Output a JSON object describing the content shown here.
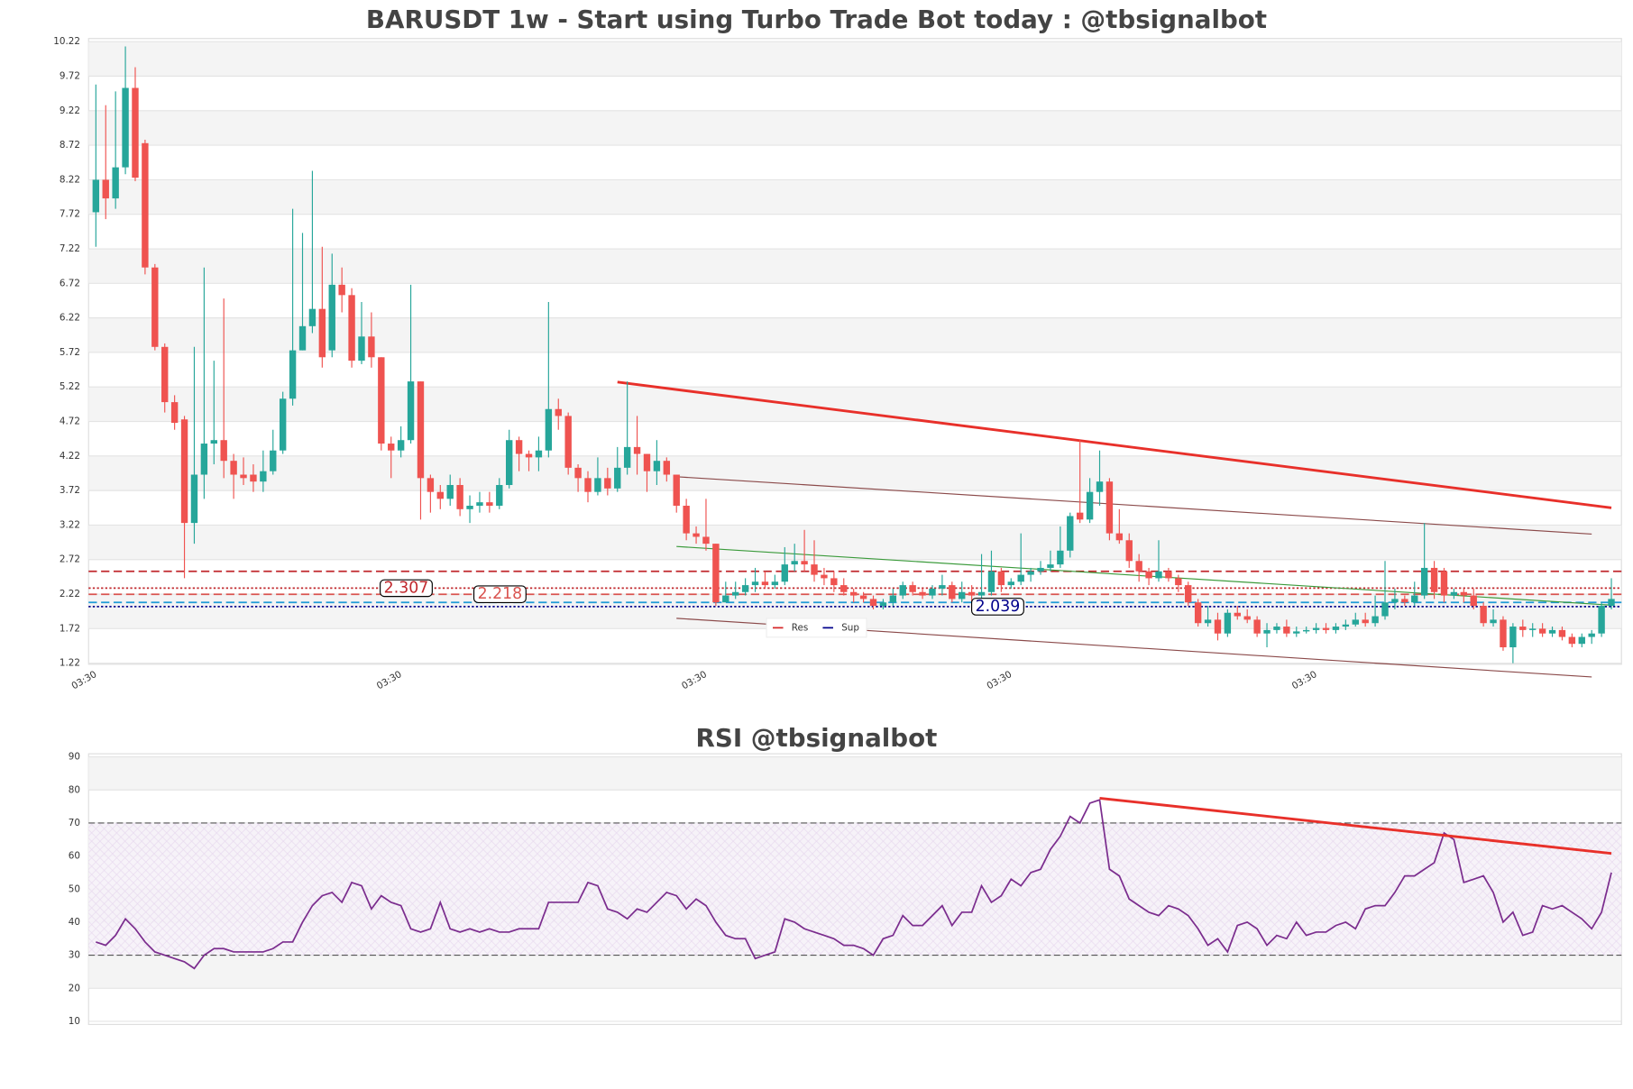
{
  "chart_data": [
    {
      "type": "candlestick",
      "title": "BARUSDT 1w - Start using Turbo Trade Bot today : @tbsignalbot",
      "categories": [
        "03:30",
        null,
        null,
        null,
        null,
        null,
        null,
        null,
        null,
        null,
        null,
        null,
        null,
        null,
        null,
        null,
        null,
        null,
        null,
        null,
        null,
        null,
        null,
        null,
        null,
        null,
        null,
        null,
        null,
        null,
        null,
        "03:30",
        null,
        null,
        null,
        null,
        null,
        null,
        null,
        null,
        null,
        null,
        null,
        null,
        null,
        null,
        null,
        null,
        null,
        null,
        null,
        null,
        null,
        null,
        null,
        null,
        null,
        null,
        null,
        null,
        null,
        null,
        "03:30",
        null,
        null,
        null,
        null,
        null,
        null,
        null,
        null,
        null,
        null,
        null,
        null,
        null,
        null,
        null,
        null,
        null,
        null,
        null,
        null,
        null,
        null,
        null,
        null,
        null,
        null,
        null,
        null,
        null,
        null,
        "03:30",
        null,
        null,
        null,
        null,
        null,
        null,
        null,
        null,
        null,
        null,
        null,
        null,
        null,
        null,
        null,
        null,
        null,
        null,
        null,
        null,
        null,
        null,
        null,
        null,
        null,
        null,
        null,
        null,
        null,
        null,
        "03:30",
        null,
        null,
        null,
        null,
        null,
        null,
        null,
        null,
        null,
        null,
        null,
        null,
        null,
        null,
        null,
        null,
        null,
        null,
        null,
        null,
        null,
        null,
        null,
        null,
        null,
        null,
        null,
        null,
        null,
        null
      ],
      "ohlc": [
        [
          7.75,
          9.6,
          7.25,
          8.22
        ],
        [
          8.22,
          9.3,
          7.65,
          7.95
        ],
        [
          7.95,
          9.5,
          7.8,
          8.4
        ],
        [
          8.4,
          10.15,
          8.3,
          9.55
        ],
        [
          9.55,
          9.85,
          8.2,
          8.25
        ],
        [
          8.75,
          8.8,
          6.85,
          6.95
        ],
        [
          6.95,
          7.0,
          5.75,
          5.8
        ],
        [
          5.8,
          5.85,
          4.85,
          5.0
        ],
        [
          5.0,
          5.1,
          4.6,
          4.7
        ],
        [
          4.75,
          4.8,
          2.45,
          3.25
        ],
        [
          3.25,
          5.8,
          2.95,
          3.95
        ],
        [
          3.95,
          6.95,
          3.6,
          4.4
        ],
        [
          4.4,
          5.6,
          4.1,
          4.45
        ],
        [
          4.45,
          6.5,
          3.9,
          4.15
        ],
        [
          4.15,
          4.25,
          3.6,
          3.95
        ],
        [
          3.95,
          4.2,
          3.8,
          3.9
        ],
        [
          3.95,
          4.1,
          3.7,
          3.85
        ],
        [
          3.85,
          4.3,
          3.7,
          4.0
        ],
        [
          4.0,
          4.6,
          3.95,
          4.3
        ],
        [
          4.3,
          5.15,
          4.25,
          5.05
        ],
        [
          5.05,
          7.8,
          4.95,
          5.75
        ],
        [
          5.75,
          7.45,
          5.75,
          6.1
        ],
        [
          6.1,
          8.35,
          6.0,
          6.35
        ],
        [
          6.35,
          7.25,
          5.5,
          5.65
        ],
        [
          5.75,
          7.15,
          5.65,
          6.7
        ],
        [
          6.7,
          6.95,
          6.3,
          6.55
        ],
        [
          6.55,
          6.65,
          5.5,
          5.6
        ],
        [
          5.6,
          6.45,
          5.55,
          5.95
        ],
        [
          5.95,
          6.3,
          5.5,
          5.65
        ],
        [
          5.65,
          5.65,
          4.3,
          4.4
        ],
        [
          4.4,
          4.5,
          3.9,
          4.3
        ],
        [
          4.3,
          4.65,
          4.2,
          4.45
        ],
        [
          4.45,
          6.7,
          4.4,
          5.3
        ],
        [
          5.3,
          5.3,
          3.3,
          3.9
        ],
        [
          3.9,
          3.95,
          3.4,
          3.7
        ],
        [
          3.7,
          3.8,
          3.45,
          3.6
        ],
        [
          3.6,
          3.95,
          3.5,
          3.8
        ],
        [
          3.8,
          3.9,
          3.35,
          3.45
        ],
        [
          3.45,
          3.65,
          3.25,
          3.5
        ],
        [
          3.5,
          3.7,
          3.4,
          3.55
        ],
        [
          3.55,
          3.7,
          3.4,
          3.5
        ],
        [
          3.5,
          3.9,
          3.45,
          3.8
        ],
        [
          3.8,
          4.6,
          3.75,
          4.45
        ],
        [
          4.45,
          4.5,
          4.0,
          4.25
        ],
        [
          4.25,
          4.3,
          4.0,
          4.2
        ],
        [
          4.2,
          4.5,
          4.0,
          4.3
        ],
        [
          4.3,
          6.45,
          4.2,
          4.9
        ],
        [
          4.9,
          5.05,
          4.6,
          4.8
        ],
        [
          4.8,
          4.85,
          3.95,
          4.05
        ],
        [
          4.05,
          4.1,
          3.7,
          3.9
        ],
        [
          3.9,
          4.0,
          3.55,
          3.7
        ],
        [
          3.7,
          4.2,
          3.65,
          3.9
        ],
        [
          3.9,
          4.05,
          3.65,
          3.75
        ],
        [
          3.75,
          4.35,
          3.7,
          4.05
        ],
        [
          4.05,
          5.3,
          3.95,
          4.35
        ],
        [
          4.35,
          4.8,
          3.95,
          4.25
        ],
        [
          4.25,
          4.25,
          3.7,
          4.0
        ],
        [
          4.0,
          4.45,
          3.8,
          4.15
        ],
        [
          4.15,
          4.2,
          3.85,
          3.95
        ],
        [
          3.95,
          3.95,
          3.4,
          3.5
        ],
        [
          3.5,
          3.6,
          3.0,
          3.1
        ],
        [
          3.1,
          3.2,
          2.95,
          3.05
        ],
        [
          3.05,
          3.6,
          2.85,
          2.95
        ],
        [
          2.95,
          2.95,
          2.05,
          2.1
        ],
        [
          2.1,
          2.4,
          2.1,
          2.2
        ],
        [
          2.2,
          2.4,
          2.15,
          2.25
        ],
        [
          2.25,
          2.45,
          2.2,
          2.35
        ],
        [
          2.35,
          2.6,
          2.25,
          2.4
        ],
        [
          2.4,
          2.55,
          2.3,
          2.35
        ],
        [
          2.35,
          2.5,
          2.3,
          2.4
        ],
        [
          2.4,
          2.9,
          2.35,
          2.65
        ],
        [
          2.65,
          2.95,
          2.55,
          2.7
        ],
        [
          2.7,
          3.15,
          2.55,
          2.65
        ],
        [
          2.65,
          3.0,
          2.4,
          2.5
        ],
        [
          2.5,
          2.6,
          2.35,
          2.45
        ],
        [
          2.45,
          2.55,
          2.25,
          2.35
        ],
        [
          2.35,
          2.45,
          2.2,
          2.25
        ],
        [
          2.25,
          2.3,
          2.1,
          2.2
        ],
        [
          2.2,
          2.25,
          2.1,
          2.15
        ],
        [
          2.15,
          2.2,
          2.0,
          2.05
        ],
        [
          2.05,
          2.15,
          2.0,
          2.1
        ],
        [
          2.1,
          2.3,
          2.05,
          2.2
        ],
        [
          2.2,
          2.4,
          2.15,
          2.35
        ],
        [
          2.35,
          2.4,
          2.2,
          2.25
        ],
        [
          2.25,
          2.3,
          2.15,
          2.2
        ],
        [
          2.2,
          2.35,
          2.15,
          2.3
        ],
        [
          2.3,
          2.5,
          2.2,
          2.35
        ],
        [
          2.35,
          2.4,
          2.1,
          2.15
        ],
        [
          2.15,
          2.4,
          2.1,
          2.25
        ],
        [
          2.25,
          2.35,
          2.1,
          2.2
        ],
        [
          2.2,
          2.8,
          2.1,
          2.25
        ],
        [
          2.25,
          2.85,
          2.2,
          2.55
        ],
        [
          2.55,
          2.6,
          2.25,
          2.35
        ],
        [
          2.35,
          2.45,
          2.3,
          2.4
        ],
        [
          2.4,
          3.1,
          2.35,
          2.5
        ],
        [
          2.5,
          2.6,
          2.4,
          2.55
        ],
        [
          2.55,
          2.7,
          2.5,
          2.6
        ],
        [
          2.6,
          2.85,
          2.55,
          2.65
        ],
        [
          2.65,
          3.2,
          2.6,
          2.85
        ],
        [
          2.85,
          3.4,
          2.75,
          3.35
        ],
        [
          3.4,
          4.45,
          3.25,
          3.3
        ],
        [
          3.3,
          3.9,
          3.25,
          3.7
        ],
        [
          3.7,
          4.3,
          3.5,
          3.85
        ],
        [
          3.85,
          3.9,
          3.0,
          3.1
        ],
        [
          3.1,
          3.45,
          2.95,
          3.0
        ],
        [
          3.0,
          3.1,
          2.6,
          2.7
        ],
        [
          2.7,
          2.8,
          2.4,
          2.55
        ],
        [
          2.55,
          2.6,
          2.35,
          2.45
        ],
        [
          2.45,
          3.0,
          2.4,
          2.55
        ],
        [
          2.55,
          2.6,
          2.4,
          2.45
        ],
        [
          2.45,
          2.5,
          2.25,
          2.35
        ],
        [
          2.35,
          2.4,
          2.05,
          2.1
        ],
        [
          2.1,
          2.15,
          1.75,
          1.8
        ],
        [
          1.8,
          2.05,
          1.75,
          1.85
        ],
        [
          1.85,
          1.95,
          1.55,
          1.65
        ],
        [
          1.65,
          2.0,
          1.6,
          1.95
        ],
        [
          1.95,
          2.05,
          1.85,
          1.9
        ],
        [
          1.9,
          2.0,
          1.8,
          1.85
        ],
        [
          1.85,
          1.9,
          1.6,
          1.65
        ],
        [
          1.65,
          1.8,
          1.45,
          1.7
        ],
        [
          1.7,
          1.8,
          1.65,
          1.75
        ],
        [
          1.75,
          1.85,
          1.6,
          1.65
        ],
        [
          1.65,
          1.75,
          1.6,
          1.68
        ],
        [
          1.68,
          1.75,
          1.65,
          1.7
        ],
        [
          1.7,
          1.8,
          1.65,
          1.73
        ],
        [
          1.73,
          1.8,
          1.65,
          1.7
        ],
        [
          1.7,
          1.8,
          1.65,
          1.75
        ],
        [
          1.75,
          1.85,
          1.7,
          1.78
        ],
        [
          1.78,
          1.95,
          1.75,
          1.85
        ],
        [
          1.85,
          1.95,
          1.75,
          1.8
        ],
        [
          1.8,
          2.2,
          1.75,
          1.9
        ],
        [
          1.9,
          2.7,
          1.85,
          2.1
        ],
        [
          2.1,
          2.3,
          2.0,
          2.15
        ],
        [
          2.15,
          2.2,
          2.05,
          2.1
        ],
        [
          2.1,
          2.4,
          2.05,
          2.2
        ],
        [
          2.2,
          3.25,
          2.15,
          2.6
        ],
        [
          2.6,
          2.7,
          2.15,
          2.25
        ],
        [
          2.55,
          2.6,
          2.1,
          2.2
        ],
        [
          2.2,
          2.3,
          2.15,
          2.25
        ],
        [
          2.25,
          2.3,
          2.1,
          2.2
        ],
        [
          2.2,
          2.3,
          2.0,
          2.05
        ],
        [
          2.05,
          2.1,
          1.75,
          1.8
        ],
        [
          1.8,
          2.0,
          1.75,
          1.85
        ],
        [
          1.85,
          1.9,
          1.4,
          1.45
        ],
        [
          1.45,
          1.8,
          1.22,
          1.75
        ],
        [
          1.75,
          1.85,
          1.6,
          1.7
        ],
        [
          1.7,
          1.8,
          1.6,
          1.72
        ],
        [
          1.72,
          1.8,
          1.6,
          1.65
        ],
        [
          1.65,
          1.75,
          1.6,
          1.7
        ],
        [
          1.7,
          1.75,
          1.55,
          1.6
        ],
        [
          1.6,
          1.65,
          1.45,
          1.5
        ],
        [
          1.5,
          1.65,
          1.45,
          1.6
        ],
        [
          1.6,
          1.7,
          1.5,
          1.65
        ],
        [
          1.65,
          2.1,
          1.6,
          2.05
        ],
        [
          2.05,
          2.45,
          2.0,
          2.15
        ]
      ],
      "up_color": "#26a69a",
      "down_color": "#ef5350",
      "ylim": [
        1.22,
        10.22
      ],
      "yticks": [
        1.22,
        1.72,
        2.22,
        2.72,
        3.22,
        3.72,
        4.22,
        4.72,
        5.22,
        5.72,
        6.22,
        6.72,
        7.22,
        7.72,
        8.22,
        8.72,
        9.22,
        9.72,
        10.22
      ],
      "trendlines": [
        {
          "color": "#e8302a",
          "width": 2.5,
          "x": [
            53,
            154
          ],
          "y": [
            5.29,
            3.47
          ]
        },
        {
          "color": "#8b4a4a",
          "width": 1,
          "x": [
            59,
            152
          ],
          "y": [
            3.92,
            3.09
          ]
        },
        {
          "color": "#8b4a4a",
          "width": 1,
          "x": [
            59,
            152
          ],
          "y": [
            1.87,
            1.02
          ]
        },
        {
          "color": "#3a9a3a",
          "width": 1,
          "x": [
            59,
            154
          ],
          "y": [
            2.91,
            2.06
          ]
        }
      ],
      "levels": [
        {
          "value": 2.55,
          "color": "#c0282d",
          "dash": "dashed"
        },
        {
          "value": 2.307,
          "color": "#c0282d",
          "dash": "dotted",
          "tag": true
        },
        {
          "value": 2.218,
          "color": "#d9534f",
          "dash": "dashed",
          "tag": true
        },
        {
          "value": 2.1,
          "color": "#1f9bd6",
          "dash": "dashed"
        },
        {
          "value": 2.039,
          "color": "#00008b",
          "dash": "dotted",
          "tag": true
        }
      ],
      "legend": [
        {
          "name": "Res",
          "color": "#d62728"
        },
        {
          "name": "Sup",
          "color": "#00008b"
        }
      ]
    },
    {
      "type": "line",
      "title": "RSI @tbsignalbot",
      "color": "#7b2d8e",
      "values": [
        34,
        33,
        36,
        41,
        38,
        34,
        31,
        30,
        29,
        28,
        26,
        30,
        32,
        32,
        31,
        31,
        31,
        31,
        32,
        34,
        34,
        40,
        45,
        48,
        49,
        46,
        52,
        51,
        44,
        48,
        46,
        45,
        38,
        37,
        38,
        46,
        38,
        37,
        38,
        37,
        38,
        37,
        37,
        38,
        38,
        38,
        46,
        46,
        46,
        46,
        52,
        51,
        44,
        43,
        41,
        44,
        43,
        46,
        49,
        48,
        44,
        47,
        45,
        40,
        36,
        35,
        35,
        29,
        30,
        31,
        41,
        40,
        38,
        37,
        36,
        35,
        33,
        33,
        32,
        30,
        35,
        36,
        42,
        39,
        39,
        42,
        45,
        39,
        43,
        43,
        51,
        46,
        48,
        53,
        51,
        55,
        56,
        62,
        66,
        72,
        70,
        76,
        77,
        56,
        54,
        47,
        45,
        43,
        42,
        45,
        44,
        42,
        38,
        33,
        35,
        31,
        39,
        40,
        38,
        33,
        36,
        35,
        40,
        36,
        37,
        37,
        39,
        40,
        38,
        44,
        45,
        45,
        49,
        54,
        54,
        56,
        58,
        67,
        65,
        52,
        53,
        54,
        49,
        40,
        43,
        36,
        37,
        45,
        44,
        45,
        43,
        41,
        38,
        43,
        55
      ],
      "ylim": [
        10,
        90
      ],
      "yticks": [
        10,
        20,
        30,
        40,
        50,
        60,
        70,
        80,
        90
      ],
      "levels": [
        30,
        70
      ],
      "trendlines": [
        {
          "color": "#e8302a",
          "width": 2.5,
          "x": [
            102,
            154
          ],
          "y": [
            77.5,
            60.8
          ]
        }
      ]
    }
  ]
}
